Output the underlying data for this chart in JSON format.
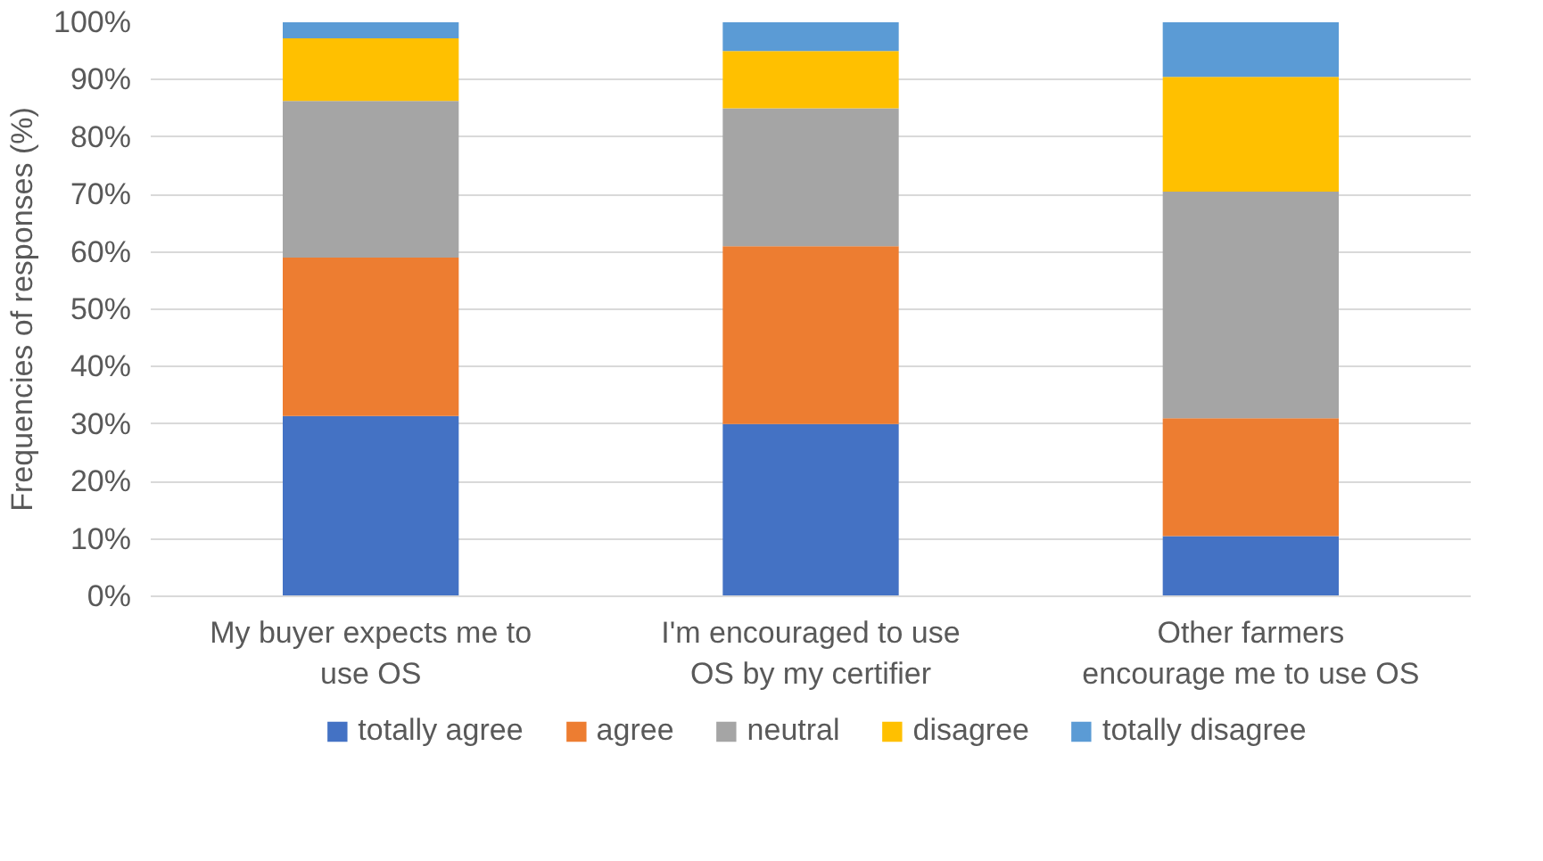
{
  "chart_data": {
    "type": "bar",
    "stacked": true,
    "ylabel": "Frequencies of responses (%)",
    "categories": [
      "My buyer expects me to use OS",
      "I'm encouraged to use OS by my certifier",
      "Other farmers encourage me to use OS"
    ],
    "series": [
      {
        "name": "totally agree",
        "color": "#4472c4",
        "values": [
          31.4,
          30,
          10.5
        ]
      },
      {
        "name": "agree",
        "color": "#ed7d31",
        "values": [
          27.6,
          31,
          20.5
        ]
      },
      {
        "name": "neutral",
        "color": "#a5a5a5",
        "values": [
          27.3,
          24,
          39.5
        ]
      },
      {
        "name": "disagree",
        "color": "#ffc000",
        "values": [
          10.9,
          10,
          20
        ]
      },
      {
        "name": "totally disagree",
        "color": "#5b9bd5",
        "values": [
          2.8,
          5,
          9.5
        ]
      }
    ],
    "ylim": [
      0,
      100
    ],
    "yticks": [
      {
        "value": 0,
        "label": "0%"
      },
      {
        "value": 10,
        "label": "10%"
      },
      {
        "value": 20,
        "label": "20%"
      },
      {
        "value": 30,
        "label": "30%"
      },
      {
        "value": 40,
        "label": "40%"
      },
      {
        "value": 50,
        "label": "50%"
      },
      {
        "value": 60,
        "label": "60%"
      },
      {
        "value": 70,
        "label": "70%"
      },
      {
        "value": 80,
        "label": "80%"
      },
      {
        "value": 90,
        "label": "90%"
      },
      {
        "value": 100,
        "label": "100%"
      }
    ],
    "grid": "y",
    "legend": "bottom"
  }
}
